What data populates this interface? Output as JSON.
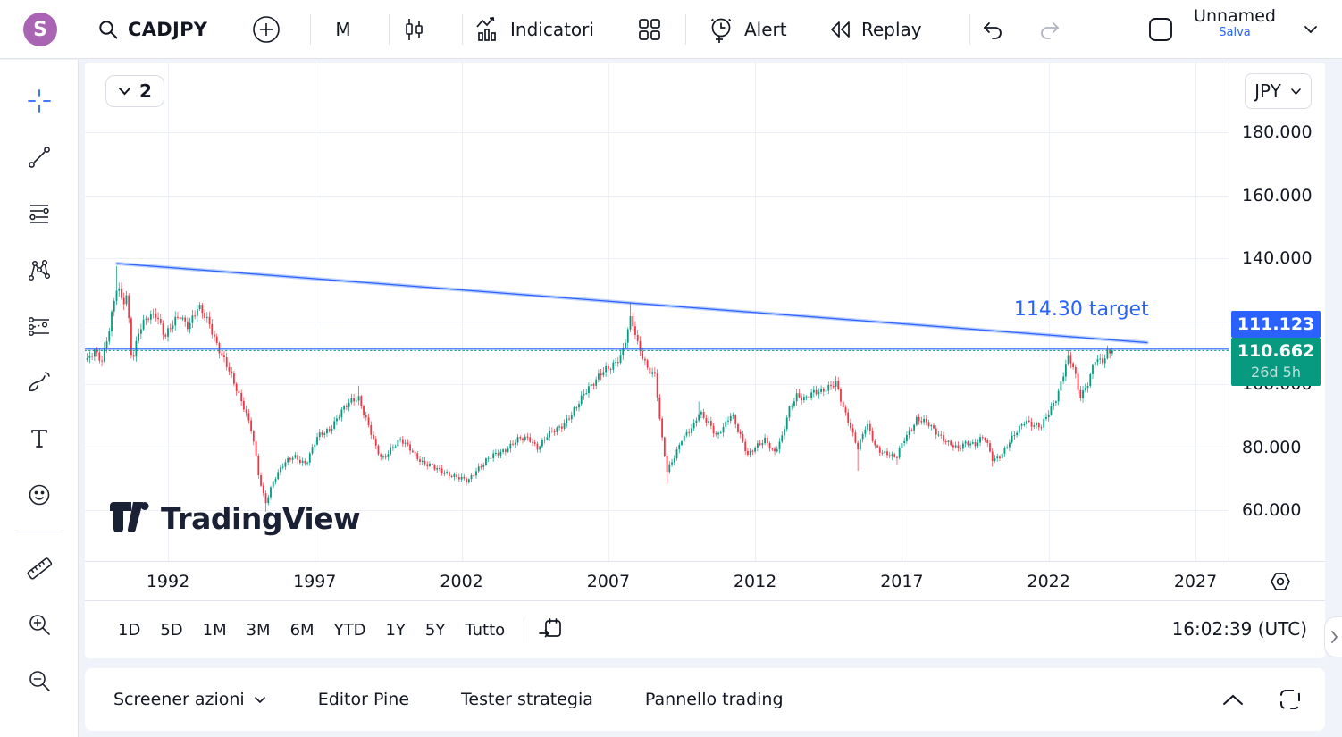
{
  "topbar": {
    "avatar_letter": "S",
    "symbol": "CADJPY",
    "interval": "M",
    "indicators_label": "Indicatori",
    "alert_label": "Alert",
    "replay_label": "Replay",
    "layout_name": "Unnamed",
    "save_label": "Salva"
  },
  "left_toolbar": {
    "tools": [
      {
        "name": "crosshair-tool",
        "icon": "crosshair-icon"
      },
      {
        "name": "trend-line-tool",
        "icon": "trend-line-icon"
      },
      {
        "name": "fib-retracement-tool",
        "icon": "horizontal-lines-icon"
      },
      {
        "name": "xabcd-pattern-tool",
        "icon": "xabcd-pattern-icon"
      },
      {
        "name": "forecast-tool",
        "icon": "long-position-icon"
      },
      {
        "name": "brush-tool",
        "icon": "brush-icon"
      },
      {
        "name": "text-tool",
        "icon": "text-icon"
      },
      {
        "name": "emoji-tool",
        "icon": "emoji-icon"
      },
      {
        "divider": true
      },
      {
        "name": "measure-tool",
        "icon": "ruler-icon"
      },
      {
        "name": "zoom-in-tool",
        "icon": "zoom-in-icon"
      },
      {
        "name": "zoom-out-tool",
        "icon": "zoom-out-icon"
      }
    ]
  },
  "chart": {
    "interval_badge": "2",
    "currency_button": "JPY",
    "watermark_text": "TradingView"
  },
  "chart_data": {
    "type": "candlestick",
    "symbol": "CADJPY",
    "timeframe": "1M",
    "x_ticks": [
      "1992",
      "1997",
      "2002",
      "2007",
      "2012",
      "2017",
      "2022",
      "2027"
    ],
    "x_tick_years": [
      1992,
      1997,
      2002,
      2007,
      2012,
      2017,
      2022,
      2027
    ],
    "y_ticks": [
      {
        "label": "180.000",
        "price": 180
      },
      {
        "label": "160.000",
        "price": 160
      },
      {
        "label": "140.000",
        "price": 140
      },
      {
        "label": "120.000",
        "price": 120
      },
      {
        "label": "100.000",
        "price": 100
      },
      {
        "label": "80.000",
        "price": 80
      },
      {
        "label": "60.000",
        "price": 60
      }
    ],
    "xlim": [
      1989.1,
      2028.4
    ],
    "ylim": [
      52,
      192
    ],
    "grid": true,
    "up_color": "#089981",
    "down_color": "#f23645",
    "current": {
      "label": "110.662",
      "price": 110.662,
      "countdown": "26d 5h",
      "color": "#089981"
    },
    "lines": {
      "horizontal_line": {
        "label": "111.123",
        "price": 111.123,
        "color": "#2962ff"
      },
      "trend_line": {
        "from": [
          1990.27,
          138.3
        ],
        "to": [
          2025.35,
          113.2
        ],
        "color": "#2962ff"
      }
    },
    "annotation": {
      "text": "114.30 target",
      "year": 2021.0,
      "price": 126.6,
      "color": "#2962ff"
    },
    "price_path": [
      [
        1989.25,
        107
      ],
      [
        1989.5,
        111
      ],
      [
        1989.75,
        108
      ],
      [
        1990.0,
        117
      ],
      [
        1990.27,
        131
      ],
      [
        1990.45,
        126
      ],
      [
        1990.6,
        129
      ],
      [
        1990.78,
        107
      ],
      [
        1991.0,
        116
      ],
      [
        1991.3,
        121
      ],
      [
        1991.6,
        123
      ],
      [
        1991.9,
        115
      ],
      [
        1992.06,
        117
      ],
      [
        1992.4,
        122
      ],
      [
        1992.7,
        119
      ],
      [
        1993.03,
        124
      ],
      [
        1993.43,
        119
      ],
      [
        1993.8,
        110
      ],
      [
        1994.25,
        100
      ],
      [
        1994.6,
        93
      ],
      [
        1994.86,
        85
      ],
      [
        1995.1,
        70
      ],
      [
        1995.32,
        62
      ],
      [
        1995.6,
        70
      ],
      [
        1995.9,
        74
      ],
      [
        1996.3,
        77
      ],
      [
        1996.7,
        75
      ],
      [
        1997.1,
        83
      ],
      [
        1997.5,
        86
      ],
      [
        1997.9,
        91
      ],
      [
        1998.3,
        95
      ],
      [
        1998.5,
        96
      ],
      [
        1998.75,
        89
      ],
      [
        1999.1,
        79
      ],
      [
        1999.3,
        76
      ],
      [
        1999.6,
        80
      ],
      [
        1999.9,
        82
      ],
      [
        2000.3,
        79
      ],
      [
        2000.7,
        75
      ],
      [
        2001.1,
        73
      ],
      [
        2001.5,
        72
      ],
      [
        2001.9,
        70
      ],
      [
        2002.2,
        69
      ],
      [
        2002.5,
        73
      ],
      [
        2002.9,
        76
      ],
      [
        2003.4,
        79
      ],
      [
        2003.9,
        82
      ],
      [
        2004.3,
        83
      ],
      [
        2004.6,
        80
      ],
      [
        2005.0,
        84
      ],
      [
        2005.4,
        87
      ],
      [
        2005.9,
        92
      ],
      [
        2006.3,
        99
      ],
      [
        2006.7,
        103
      ],
      [
        2007.1,
        105
      ],
      [
        2007.45,
        110
      ],
      [
        2007.77,
        121
      ],
      [
        2008.0,
        112
      ],
      [
        2008.3,
        106
      ],
      [
        2008.6,
        103
      ],
      [
        2008.8,
        84
      ],
      [
        2009.0,
        72
      ],
      [
        2009.2,
        76
      ],
      [
        2009.5,
        83
      ],
      [
        2009.9,
        86
      ],
      [
        2010.1,
        91
      ],
      [
        2010.45,
        88
      ],
      [
        2010.7,
        83
      ],
      [
        2011.0,
        87
      ],
      [
        2011.2,
        91
      ],
      [
        2011.5,
        84
      ],
      [
        2011.75,
        77
      ],
      [
        2012.05,
        80
      ],
      [
        2012.35,
        83
      ],
      [
        2012.65,
        78
      ],
      [
        2012.9,
        82
      ],
      [
        2013.15,
        92
      ],
      [
        2013.4,
        97
      ],
      [
        2013.7,
        95
      ],
      [
        2014.0,
        97
      ],
      [
        2014.4,
        99
      ],
      [
        2014.75,
        100
      ],
      [
        2015.0,
        92
      ],
      [
        2015.2,
        88
      ],
      [
        2015.5,
        80
      ],
      [
        2015.8,
        87
      ],
      [
        2016.1,
        80
      ],
      [
        2016.5,
        78
      ],
      [
        2016.8,
        76
      ],
      [
        2017.1,
        83
      ],
      [
        2017.5,
        89
      ],
      [
        2017.9,
        87
      ],
      [
        2018.3,
        84
      ],
      [
        2018.6,
        81
      ],
      [
        2018.9,
        79
      ],
      [
        2019.2,
        82
      ],
      [
        2019.5,
        81
      ],
      [
        2019.8,
        83
      ],
      [
        2020.1,
        76
      ],
      [
        2020.4,
        78
      ],
      [
        2020.8,
        83
      ],
      [
        2021.2,
        89
      ],
      [
        2021.5,
        87
      ],
      [
        2021.75,
        86
      ],
      [
        2022.0,
        91
      ],
      [
        2022.3,
        97
      ],
      [
        2022.65,
        108
      ],
      [
        2022.85,
        105
      ],
      [
        2023.05,
        96
      ],
      [
        2023.3,
        100
      ],
      [
        2023.6,
        108
      ],
      [
        2023.8,
        106
      ],
      [
        2024.0,
        110
      ],
      [
        2024.17,
        110.662
      ]
    ],
    "wick_anchors": [
      [
        1990.27,
        "high",
        137.5
      ],
      [
        1995.32,
        "low",
        59.5
      ],
      [
        1998.5,
        "high",
        99.5
      ],
      [
        2002.2,
        "low",
        68.2
      ],
      [
        2007.77,
        "high",
        125.8
      ],
      [
        2009.0,
        "low",
        68.3
      ],
      [
        2010.1,
        "high",
        94.5
      ],
      [
        2015.5,
        "low",
        72.5
      ],
      [
        2016.8,
        "low",
        74.5
      ],
      [
        2020.1,
        "low",
        73.8
      ],
      [
        2022.65,
        "high",
        110.8
      ],
      [
        2024.0,
        "high",
        112.3
      ]
    ]
  },
  "timeframe_bar": {
    "items": [
      "1D",
      "5D",
      "1M",
      "3M",
      "6M",
      "YTD",
      "1Y",
      "5Y",
      "Tutto"
    ],
    "clock": "16:02:39 (UTC)"
  },
  "bottom_panel": {
    "tabs": [
      "Screener azioni",
      "Editor Pine",
      "Tester strategia",
      "Pannello trading"
    ]
  }
}
